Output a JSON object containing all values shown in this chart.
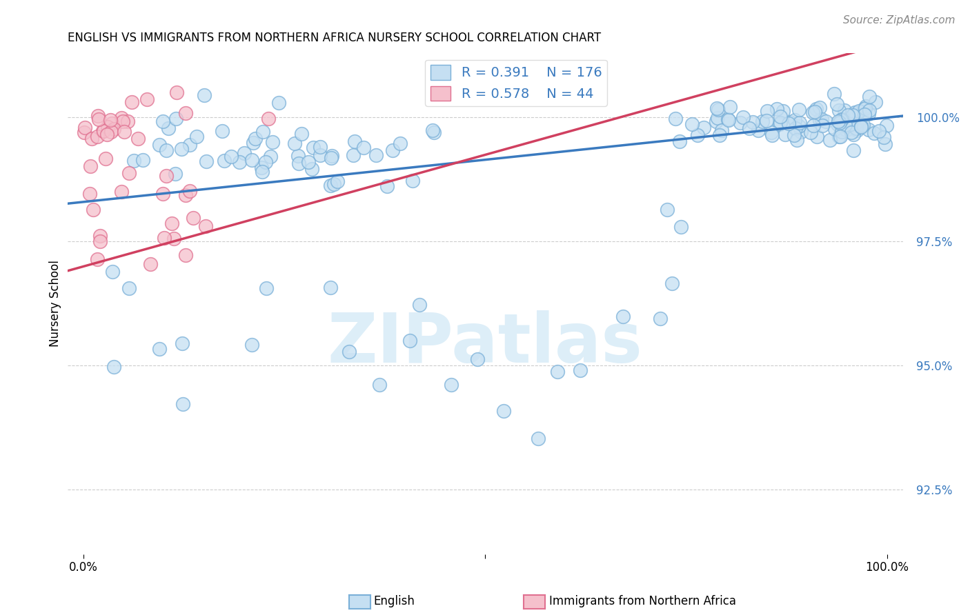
{
  "title": "ENGLISH VS IMMIGRANTS FROM NORTHERN AFRICA NURSERY SCHOOL CORRELATION CHART",
  "source": "Source: ZipAtlas.com",
  "ylabel": "Nursery School",
  "ytick_values": [
    92.5,
    95.0,
    97.5,
    100.0
  ],
  "ylim": [
    91.2,
    101.3
  ],
  "xlim": [
    -0.02,
    1.02
  ],
  "legend_R_english": "R = 0.391",
  "legend_N_english": "N = 176",
  "legend_R_immigrants": "R = 0.578",
  "legend_N_immigrants": "N = 44",
  "english_face_color": "#c5dff2",
  "english_edge_color": "#7ab0d8",
  "english_line_color": "#3a7abf",
  "immigrants_face_color": "#f5c0cc",
  "immigrants_edge_color": "#e07090",
  "immigrants_line_color": "#d04060",
  "background_color": "#ffffff",
  "watermark_text": "ZIPatlas",
  "watermark_color": "#ddeef8",
  "n_english": 176,
  "n_immigrants": 44,
  "grid_color": "#cccccc",
  "ytick_color": "#3a7abf",
  "title_fontsize": 12,
  "tick_fontsize": 12,
  "legend_fontsize": 14,
  "source_fontsize": 11
}
